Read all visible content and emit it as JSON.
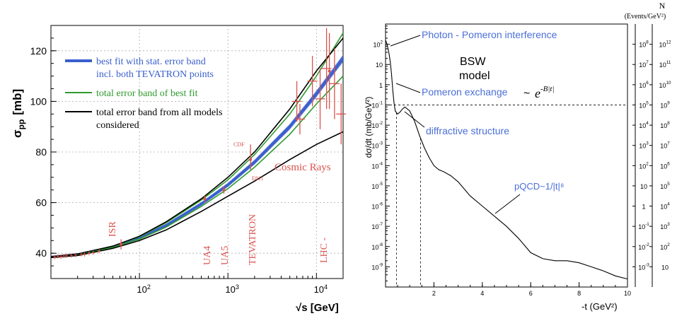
{
  "chart_data": [
    {
      "type": "line",
      "ylabel": "σ",
      "ylabel_sub": "pp",
      "ylabel_unit": "[mb]",
      "xlabel": "√s [GeV]",
      "xscale": "log",
      "xlim": [
        10,
        20000
      ],
      "ylim": [
        30,
        130
      ],
      "grid": true,
      "yticks": [
        "40",
        "60",
        "80",
        "100",
        "120"
      ],
      "xticks": [
        {
          "base": "10",
          "exp": "2",
          "v": 100
        },
        {
          "base": "10",
          "exp": "3",
          "v": 1000
        },
        {
          "base": "10",
          "exp": "4",
          "v": 10000
        }
      ],
      "legend_position": "top-left",
      "legend": [
        {
          "label": "best fit with stat. error band",
          "label2": "incl. both TEVATRON points",
          "color": "#3a5fcd"
        },
        {
          "label": "total error band of best fit",
          "label2": "",
          "color": "#2e9a2e"
        },
        {
          "label": "total error band from all models",
          "label2": "considered",
          "color": "#000000"
        }
      ],
      "series": [
        {
          "color": "#3a5fcd",
          "x": [
            10,
            20,
            50,
            100,
            200,
            500,
            1000,
            2000,
            5000,
            10000,
            20000
          ],
          "y": [
            38.5,
            39.5,
            42.5,
            46,
            51,
            59.5,
            67,
            76,
            90,
            103,
            117
          ]
        },
        {
          "color": "#2e9a2e",
          "x": [
            10,
            20,
            50,
            100,
            200,
            500,
            1000,
            2000,
            5000,
            10000,
            20000
          ],
          "y": [
            38.6,
            39.6,
            42.7,
            46.5,
            52,
            61,
            69,
            79,
            95,
            110,
            127
          ]
        },
        {
          "color": "#2e9a2e",
          "x": [
            10,
            20,
            50,
            100,
            200,
            500,
            1000,
            2000,
            5000,
            10000,
            20000
          ],
          "y": [
            38.4,
            39.3,
            42.3,
            45.6,
            50.3,
            58.5,
            65.5,
            74,
            87,
            99,
            110
          ]
        },
        {
          "color": "#000000",
          "x": [
            10,
            20,
            50,
            100,
            200,
            500,
            1000,
            2000,
            5000,
            10000,
            20000
          ],
          "y": [
            38.6,
            39.7,
            42.8,
            46.7,
            52.4,
            61.5,
            70,
            80,
            97,
            112,
            125
          ]
        },
        {
          "color": "#000000",
          "x": [
            10,
            20,
            50,
            100,
            200,
            500,
            1000,
            2000,
            5000,
            10000,
            20000
          ],
          "y": [
            38.3,
            39.1,
            41.9,
            45,
            49.2,
            56.5,
            62.5,
            68.5,
            77,
            83,
            88
          ]
        }
      ],
      "experiments": [
        {
          "label": "ISR",
          "x": 62,
          "y": 43.5,
          "err": 2
        },
        {
          "label": "UA4",
          "x": 546,
          "y": 61.5,
          "err": 1.5
        },
        {
          "label": "UA5",
          "x": 900,
          "y": 65,
          "err": 1.5
        },
        {
          "label": "TEVATRON",
          "x": 1800,
          "y": 77,
          "err": 2
        },
        {
          "label": "LHC -",
          "x": 14000,
          "y": 112,
          "err": 15
        }
      ],
      "annotations": [
        "CDF",
        "E811",
        "Cosmic Rays"
      ],
      "cosmic_rays": [
        {
          "x": 6000,
          "y": 100,
          "err": 8
        },
        {
          "x": 6500,
          "y": 93,
          "err": 6
        },
        {
          "x": 9000,
          "y": 108,
          "err": 10
        },
        {
          "x": 11000,
          "y": 101,
          "err": 12
        },
        {
          "x": 13000,
          "y": 113,
          "err": 16
        },
        {
          "x": 16000,
          "y": 107,
          "err": 14
        },
        {
          "x": 19000,
          "y": 95,
          "err": 12
        }
      ]
    },
    {
      "type": "line",
      "ylabel": "dσ/dt (mb/GeV²)",
      "xlabel": "-t (GeV²)",
      "xlim": [
        0,
        10
      ],
      "ylim_log10": [
        -10,
        3
      ],
      "right_axis_title": "N",
      "right_axis_unit": "(Events/GeV²)",
      "xticks": [
        "2",
        "4",
        "6",
        "8",
        "10"
      ],
      "yticks": [
        {
          "b": "10",
          "e": "2",
          "v": 2
        },
        {
          "b": "10",
          "e": "",
          "v": 1
        },
        {
          "b": "1",
          "e": "",
          "v": 0
        },
        {
          "b": "10",
          "e": "-1",
          "v": -1
        },
        {
          "b": "10",
          "e": "-2",
          "v": -2
        },
        {
          "b": "10",
          "e": "-3",
          "v": -3
        },
        {
          "b": "10",
          "e": "-4",
          "v": -4
        },
        {
          "b": "10",
          "e": "-5",
          "v": -5
        },
        {
          "b": "10",
          "e": "-6",
          "v": -6
        },
        {
          "b": "10",
          "e": "-7",
          "v": -7
        },
        {
          "b": "10",
          "e": "-8",
          "v": -8
        },
        {
          "b": "10",
          "e": "-9",
          "v": -9
        }
      ],
      "right_ticks_1": [
        {
          "b": "10",
          "e": "8",
          "v": 2
        },
        {
          "b": "10",
          "e": "7",
          "v": 1
        },
        {
          "b": "10",
          "e": "6",
          "v": 0
        },
        {
          "b": "10",
          "e": "5",
          "v": -1
        },
        {
          "b": "10",
          "e": "4",
          "v": -2
        },
        {
          "b": "10",
          "e": "3",
          "v": -3
        },
        {
          "b": "10",
          "e": "2",
          "v": -4
        },
        {
          "b": "10",
          "e": "",
          "v": -5
        },
        {
          "b": "1",
          "e": "",
          "v": -6
        },
        {
          "b": "10",
          "e": "-1",
          "v": -7
        },
        {
          "b": "10",
          "e": "-2",
          "v": -8
        },
        {
          "b": "10",
          "e": "-3",
          "v": -9
        }
      ],
      "right_ticks_2": [
        {
          "b": "10",
          "e": "12",
          "v": 2
        },
        {
          "b": "10",
          "e": "11",
          "v": 1
        },
        {
          "b": "10",
          "e": "10",
          "v": 0
        },
        {
          "b": "10",
          "e": "9",
          "v": -1
        },
        {
          "b": "10",
          "e": "8",
          "v": -2
        },
        {
          "b": "10",
          "e": "7",
          "v": -3
        },
        {
          "b": "10",
          "e": "6",
          "v": -4
        },
        {
          "b": "10",
          "e": "5",
          "v": -5
        },
        {
          "b": "10",
          "e": "4",
          "v": -6
        },
        {
          "b": "10",
          "e": "3",
          "v": -7
        },
        {
          "b": "10",
          "e": "2",
          "v": -8
        },
        {
          "b": "10",
          "e": "",
          "v": -9
        }
      ],
      "curve": {
        "x": [
          0.0,
          0.05,
          0.1,
          0.15,
          0.2,
          0.25,
          0.3,
          0.35,
          0.4,
          0.5,
          0.6,
          0.7,
          0.8,
          1.0,
          1.2,
          1.4,
          1.6,
          1.8,
          2.0,
          2.2,
          2.4,
          2.7,
          3.0,
          3.5,
          4.0,
          4.5,
          5.0,
          5.5,
          6.0,
          6.5,
          7.0,
          7.5,
          8.0,
          8.5,
          9.0,
          9.5,
          10.0
        ],
        "log10y": [
          2.2,
          2.05,
          1.8,
          1.5,
          1.1,
          0.5,
          -0.3,
          -0.9,
          -1.3,
          -1.45,
          -1.35,
          -1.2,
          -1.1,
          -1.3,
          -1.8,
          -2.5,
          -3.1,
          -3.6,
          -4.0,
          -4.2,
          -4.3,
          -4.5,
          -4.8,
          -5.5,
          -6.0,
          -6.5,
          -7.0,
          -7.6,
          -8.3,
          -8.6,
          -8.7,
          -8.7,
          -8.8,
          -9.0,
          -9.2,
          -9.45,
          -9.6
        ]
      },
      "dashed_h_log10y": -1,
      "dashed_v_x": [
        0.45,
        1.45
      ],
      "annotations": [
        {
          "text": "Photon - Pomeron interference",
          "color": "#4a6fd8"
        },
        {
          "text": "BSW",
          "color": "#000000"
        },
        {
          "text": "model",
          "color": "#000000"
        },
        {
          "text": "Pomeron exchange",
          "color": "#4a6fd8"
        },
        {
          "text": "~",
          "color": "#000000"
        },
        {
          "text": "diffractive structure",
          "color": "#4a6fd8"
        },
        {
          "text": "pQCD~1/|t|⁸",
          "color": "#4a6fd8"
        }
      ],
      "formula": {
        "base": "e",
        "exp": "-B|t|"
      }
    }
  ]
}
